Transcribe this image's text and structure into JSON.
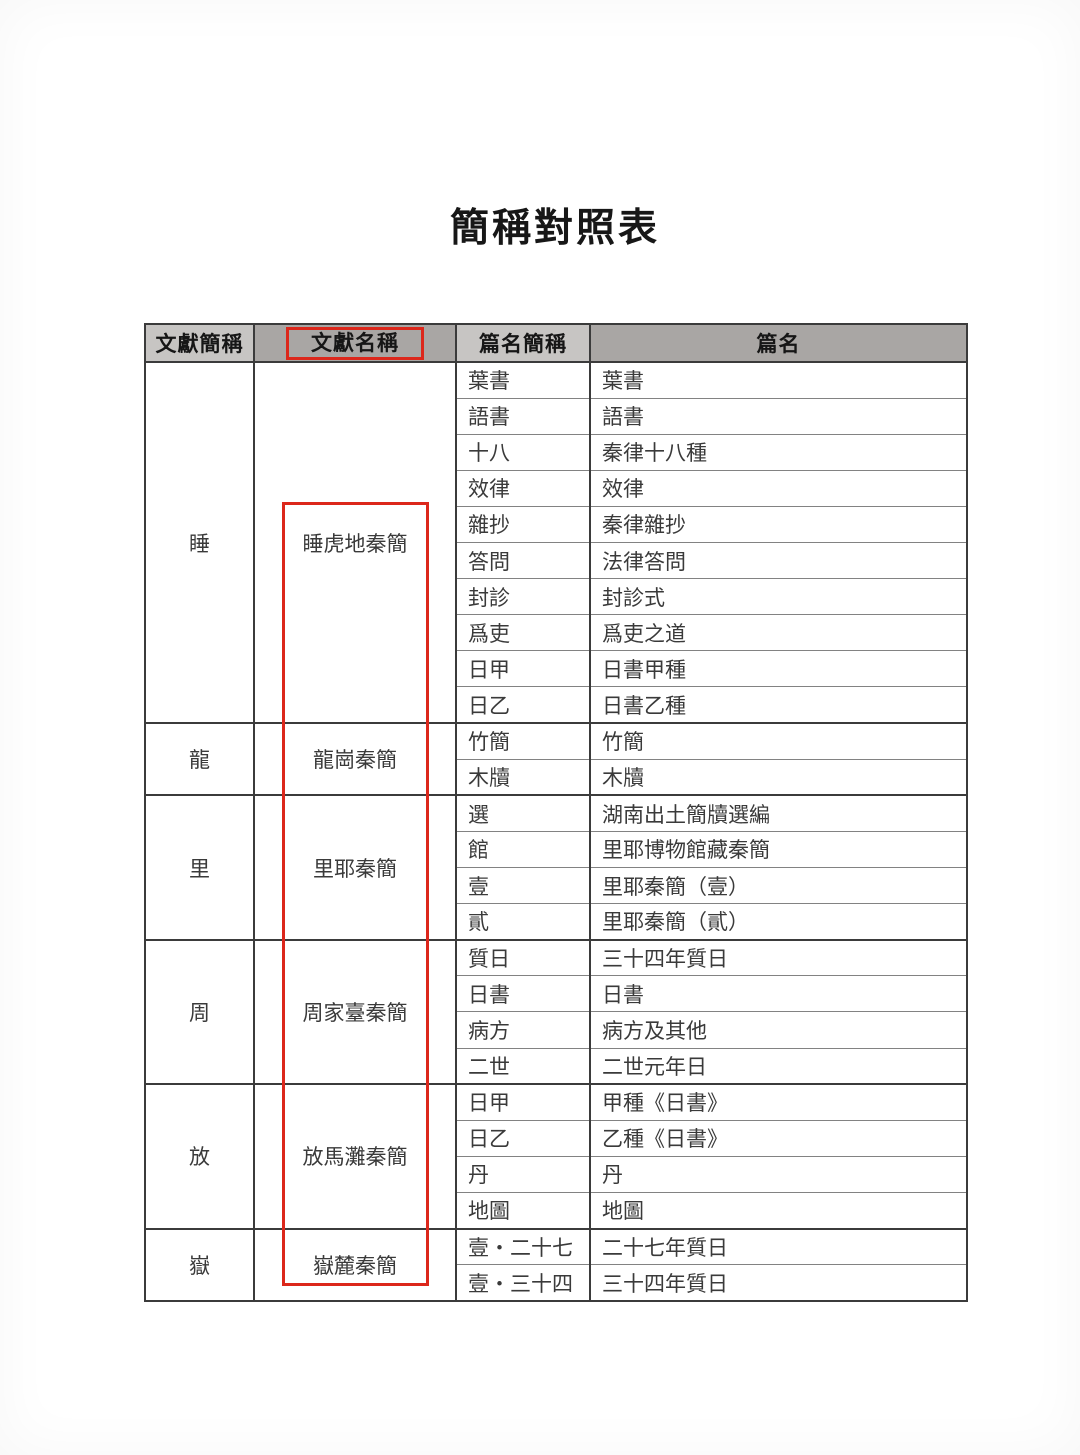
{
  "page": {
    "title": "簡稱對照表"
  },
  "colors": {
    "annotation_red": "#dc271b",
    "header_dark_gray": "#a9a6a4",
    "header_light_gray": "#c7c5c3",
    "grid_dark": "#3b3b3b",
    "grid_light": "#828282"
  },
  "table": {
    "headers": [
      {
        "label": "文獻簡稱",
        "highlighted": false
      },
      {
        "label": "文獻名稱",
        "highlighted": true
      },
      {
        "label": "篇名簡稱",
        "highlighted": false
      },
      {
        "label": "篇名",
        "highlighted": false
      }
    ],
    "groups": [
      {
        "abbr": "睡",
        "name": "睡虎地秦簡",
        "rows": [
          {
            "pian_abbr": "葉書",
            "pian_name": "葉書"
          },
          {
            "pian_abbr": "語書",
            "pian_name": "語書"
          },
          {
            "pian_abbr": "十八",
            "pian_name": "秦律十八種"
          },
          {
            "pian_abbr": "效律",
            "pian_name": "效律"
          },
          {
            "pian_abbr": "雜抄",
            "pian_name": "秦律雜抄"
          },
          {
            "pian_abbr": "答問",
            "pian_name": "法律答問"
          },
          {
            "pian_abbr": "封診",
            "pian_name": "封診式"
          },
          {
            "pian_abbr": "爲吏",
            "pian_name": "爲吏之道"
          },
          {
            "pian_abbr": "日甲",
            "pian_name": "日書甲種"
          },
          {
            "pian_abbr": "日乙",
            "pian_name": "日書乙種"
          }
        ]
      },
      {
        "abbr": "龍",
        "name": "龍崗秦簡",
        "rows": [
          {
            "pian_abbr": "竹簡",
            "pian_name": "竹簡"
          },
          {
            "pian_abbr": "木牘",
            "pian_name": "木牘"
          }
        ]
      },
      {
        "abbr": "里",
        "name": "里耶秦簡",
        "rows": [
          {
            "pian_abbr": "選",
            "pian_name": "湖南出土簡牘選編"
          },
          {
            "pian_abbr": "館",
            "pian_name": "里耶博物館藏秦簡"
          },
          {
            "pian_abbr": "壹",
            "pian_name": "里耶秦簡（壹）"
          },
          {
            "pian_abbr": "貳",
            "pian_name": "里耶秦簡（貳）"
          }
        ]
      },
      {
        "abbr": "周",
        "name": "周家臺秦簡",
        "rows": [
          {
            "pian_abbr": "質日",
            "pian_name": "三十四年質日"
          },
          {
            "pian_abbr": "日書",
            "pian_name": "日書"
          },
          {
            "pian_abbr": "病方",
            "pian_name": "病方及其他"
          },
          {
            "pian_abbr": "二世",
            "pian_name": "二世元年日"
          }
        ]
      },
      {
        "abbr": "放",
        "name": "放馬灘秦簡",
        "rows": [
          {
            "pian_abbr": "日甲",
            "pian_name": "甲種《日書》"
          },
          {
            "pian_abbr": "日乙",
            "pian_name": "乙種《日書》"
          },
          {
            "pian_abbr": "丹",
            "pian_name": "丹"
          },
          {
            "pian_abbr": "地圖",
            "pian_name": "地圖"
          }
        ]
      },
      {
        "abbr": "嶽",
        "name": "嶽麓秦簡",
        "rows": [
          {
            "pian_abbr": "壹・二十七",
            "pian_name": "二十七年質日"
          },
          {
            "pian_abbr": "壹・三十四",
            "pian_name": "三十四年質日"
          }
        ]
      }
    ]
  }
}
